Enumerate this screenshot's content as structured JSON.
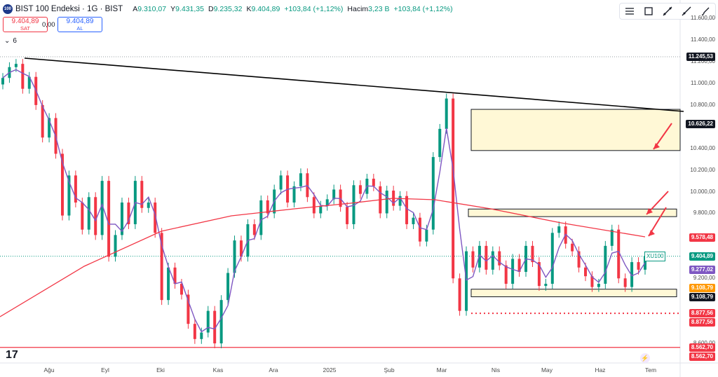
{
  "header": {
    "logo_text": "100",
    "title": "BIST 100 Endeksi · 1G · BIST",
    "ohlc": [
      {
        "label": "A",
        "value": "9.310,07"
      },
      {
        "label": "Y",
        "value": "9.431,35"
      },
      {
        "label": "D",
        "value": "9.235,32"
      },
      {
        "label": "K",
        "value": "9.404,89"
      },
      {
        "label": "",
        "value": "+103,84 (+1,12%)"
      },
      {
        "label": "Hacim",
        "value": "3,23 B"
      },
      {
        "label": "",
        "value": "+103,84 (+1,12%)"
      }
    ]
  },
  "trade": {
    "sell_price": "9.404,89",
    "sell_label": "SAT",
    "spread": "0,00",
    "buy_price": "9.404,89",
    "buy_label": "AL"
  },
  "indicators": {
    "toggle_icon": "chevron-down-icon",
    "count": "6"
  },
  "toolbar": [
    "horizontal-lines-icon",
    "rectangle-icon",
    "trend-line-icon",
    "ray-line-icon",
    "brush-icon"
  ],
  "colors": {
    "up": "#089981",
    "down": "#f23645",
    "ma_short": "#7e57c2",
    "ma_long": "#f23645",
    "zone_fill": "#fff8d6"
  },
  "chart_data": {
    "type": "candlestick",
    "symbol": "XU100",
    "y_ticks": [
      "11.600,00",
      "11.400,00",
      "11.200,00",
      "11.000,00",
      "10.800,00",
      "10.400,00",
      "10.200,00",
      "10.000,00",
      "9.800,00",
      "9.200,00",
      "8.600,00"
    ],
    "y_tick_values": [
      11600,
      11400,
      11200,
      11000,
      10800,
      10400,
      10200,
      10000,
      9800,
      9200,
      8600
    ],
    "x_ticks": [
      "Ağu",
      "Eyl",
      "Eki",
      "Kas",
      "Ara",
      "2025",
      "Şub",
      "Mar",
      "Nis",
      "May",
      "Haz",
      "Tem"
    ],
    "price_labels": [
      {
        "text": "11.245,53",
        "value": 11245.53,
        "style": "dark"
      },
      {
        "text": "10.626,22",
        "value": 10626.22,
        "style": "dark"
      },
      {
        "text": "9.578,48",
        "value": 9578.48,
        "style": "red"
      },
      {
        "text": "9.404,89",
        "value": 9404.89,
        "style": "green"
      },
      {
        "text": "9.277,02",
        "value": 9277.02,
        "style": "purple"
      },
      {
        "text": "9.108,79",
        "value": 9108.79,
        "style": "orange"
      },
      {
        "text": "9.108,79",
        "value": 9108.79,
        "style": "dark"
      },
      {
        "text": "8.877,56",
        "value": 8877.56,
        "style": "red"
      },
      {
        "text": "8.877,56",
        "value": 8877.56,
        "style": "red"
      },
      {
        "text": "8.562,70",
        "value": 8562.7,
        "style": "red"
      },
      {
        "text": "8.562,70",
        "value": 8562.7,
        "style": "red"
      }
    ],
    "last_price_tag": "XU100",
    "zones": [
      {
        "from": 10380,
        "to": 10760
      },
      {
        "from": 9770,
        "to": 9840
      },
      {
        "from": 9030,
        "to": 9100
      }
    ],
    "levels": [
      11245.53,
      8877.56,
      8562.7
    ],
    "close_path": [
      11050,
      11150,
      11180,
      10950,
      11060,
      10800,
      10500,
      10680,
      10350,
      9780,
      10150,
      9900,
      9650,
      9950,
      9600,
      10100,
      9400,
      9600,
      9900,
      9700,
      10100,
      9850,
      9900,
      9620,
      9000,
      9300,
      9150,
      9050,
      8780,
      8640,
      8700,
      8900,
      8600,
      9000,
      9250,
      9550,
      9400,
      9700,
      9600,
      9920,
      9800,
      10020,
      10150,
      9900,
      10050,
      10170,
      9950,
      9800,
      9870,
      9930,
      10020,
      9860,
      9700,
      10060,
      9980,
      10120,
      10050,
      9800,
      10010,
      9870,
      9960,
      9700,
      9760,
      9540,
      9650,
      10320,
      10580,
      10860,
      9200,
      8900,
      9450,
      9300,
      9500,
      9280,
      9450,
      9320,
      9150,
      9380,
      9260,
      9500,
      9350,
      9130,
      9150,
      9620,
      9680,
      9520,
      9450,
      9300,
      9220,
      9120,
      9150,
      9500,
      9650,
      9200,
      9120,
      9350,
      9280,
      9404
    ]
  }
}
